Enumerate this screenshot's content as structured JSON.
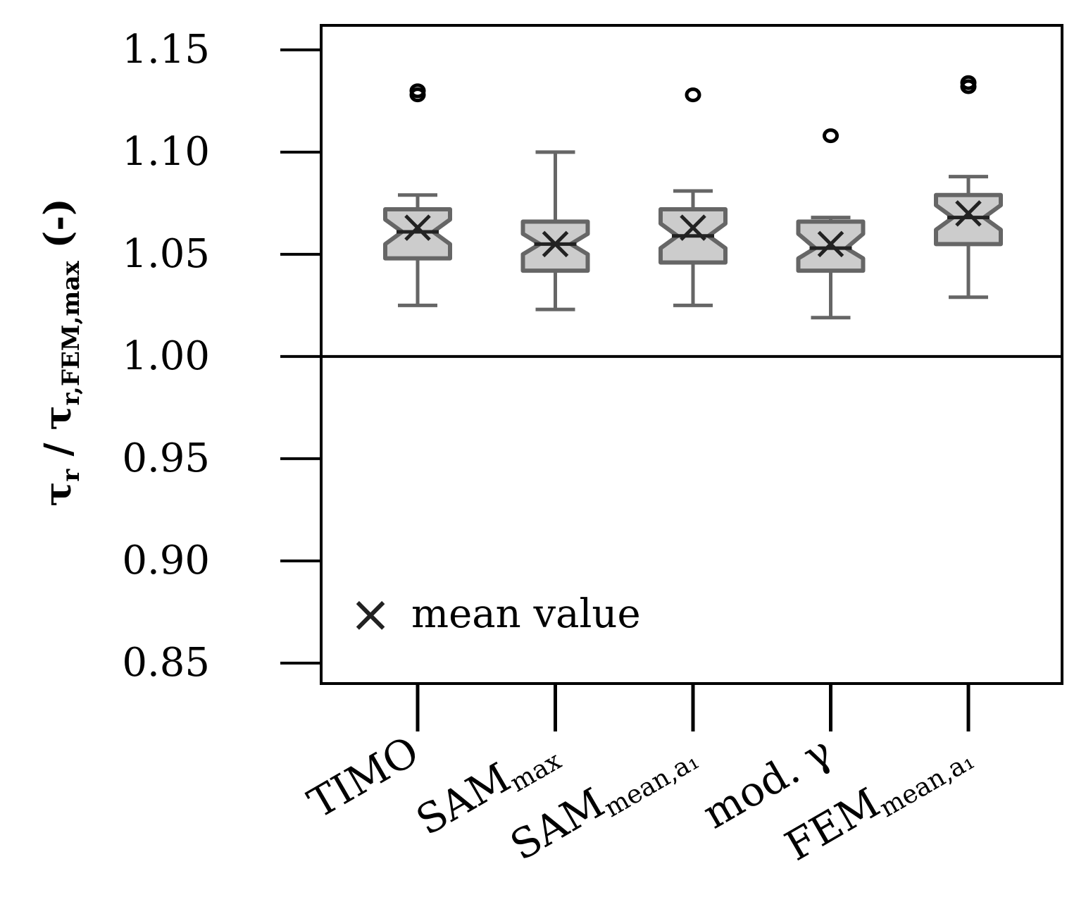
{
  "chart_data": {
    "type": "boxplot",
    "ylabel": {
      "main": "τ",
      "sub1": "r",
      "sep": " / ",
      "main2": "τ",
      "sub2": "r,FEM,max",
      "unit": " (-)"
    },
    "ylim": [
      0.84,
      1.162
    ],
    "yticks": [
      0.85,
      0.9,
      0.95,
      1.0,
      1.05,
      1.1,
      1.15
    ],
    "ytick_labels": [
      "0.85",
      "0.90",
      "0.95",
      "1.00",
      "1.05",
      "1.10",
      "1.15"
    ],
    "reference_line": 1.0,
    "categories": [
      {
        "main": "TIMO",
        "sub": ""
      },
      {
        "main": "SAM",
        "sub": "max"
      },
      {
        "main": "SAM",
        "sub": "mean,a₁"
      },
      {
        "main": "mod. γ",
        "sub": ""
      },
      {
        "main": "FEM",
        "sub": "mean,a₁"
      }
    ],
    "boxes": [
      {
        "whisker_low": 1.025,
        "q1": 1.048,
        "median": 1.061,
        "q3": 1.072,
        "whisker_high": 1.079,
        "mean": 1.063,
        "notch_low": 1.055,
        "notch_high": 1.067,
        "outliers": [
          1.128,
          1.13
        ]
      },
      {
        "whisker_low": 1.023,
        "q1": 1.042,
        "median": 1.055,
        "q3": 1.066,
        "whisker_high": 1.1,
        "mean": 1.055,
        "notch_low": 1.05,
        "notch_high": 1.06,
        "outliers": []
      },
      {
        "whisker_low": 1.025,
        "q1": 1.046,
        "median": 1.059,
        "q3": 1.072,
        "whisker_high": 1.081,
        "mean": 1.063,
        "notch_low": 1.053,
        "notch_high": 1.065,
        "outliers": [
          1.128
        ]
      },
      {
        "whisker_low": 1.019,
        "q1": 1.042,
        "median": 1.053,
        "q3": 1.066,
        "whisker_high": 1.068,
        "mean": 1.055,
        "notch_low": 1.048,
        "notch_high": 1.06,
        "outliers": [
          1.108
        ]
      },
      {
        "whisker_low": 1.029,
        "q1": 1.055,
        "median": 1.068,
        "q3": 1.079,
        "whisker_high": 1.088,
        "mean": 1.07,
        "notch_low": 1.062,
        "notch_high": 1.074,
        "outliers": [
          1.132,
          1.134
        ]
      }
    ],
    "legend": {
      "marker": "×",
      "label": "mean value",
      "placement": "bottom-left"
    },
    "colors": {
      "box_fill": "#cccccc",
      "box_stroke": "#666666",
      "mean_marker": "#222222",
      "axis": "#000000"
    }
  }
}
